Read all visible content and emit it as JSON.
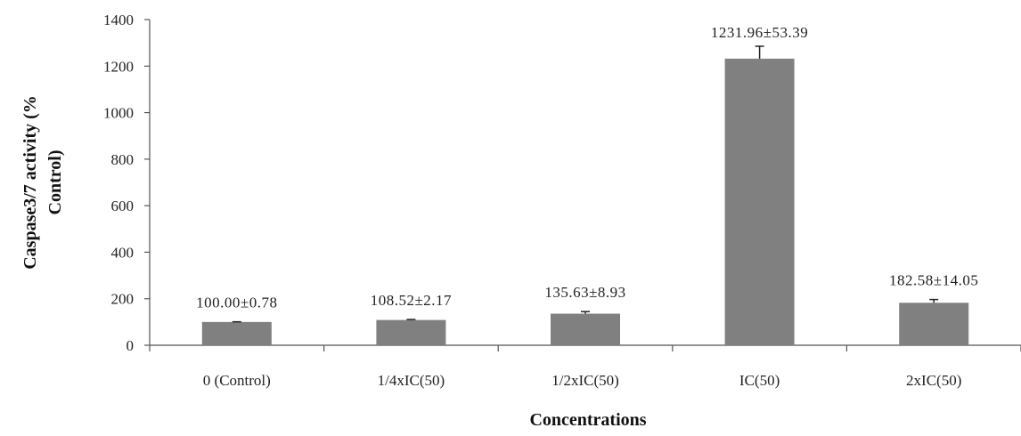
{
  "chart_data": {
    "type": "bar",
    "xlabel": "Concentrations",
    "ylabel_lines": [
      "Caspase3/7 activity (%",
      "Control)"
    ],
    "categories": [
      "0 (Control)",
      "1/4xIC(50)",
      "1/2xIC(50)",
      "IC(50)",
      "2xIC(50)"
    ],
    "values": [
      100.0,
      108.52,
      135.63,
      1231.96,
      182.58
    ],
    "errors": [
      0.78,
      2.17,
      8.93,
      53.39,
      14.05
    ],
    "data_labels": [
      "100.00±0.78",
      "108.52±2.17",
      "135.63±8.93",
      "1231.96±53.39",
      "182.58±14.05"
    ],
    "ylim": [
      0,
      1400
    ],
    "yticks": [
      0,
      200,
      400,
      600,
      800,
      1000,
      1200,
      1400
    ],
    "bar_color": "#808080",
    "grid": false,
    "legend": "none"
  }
}
